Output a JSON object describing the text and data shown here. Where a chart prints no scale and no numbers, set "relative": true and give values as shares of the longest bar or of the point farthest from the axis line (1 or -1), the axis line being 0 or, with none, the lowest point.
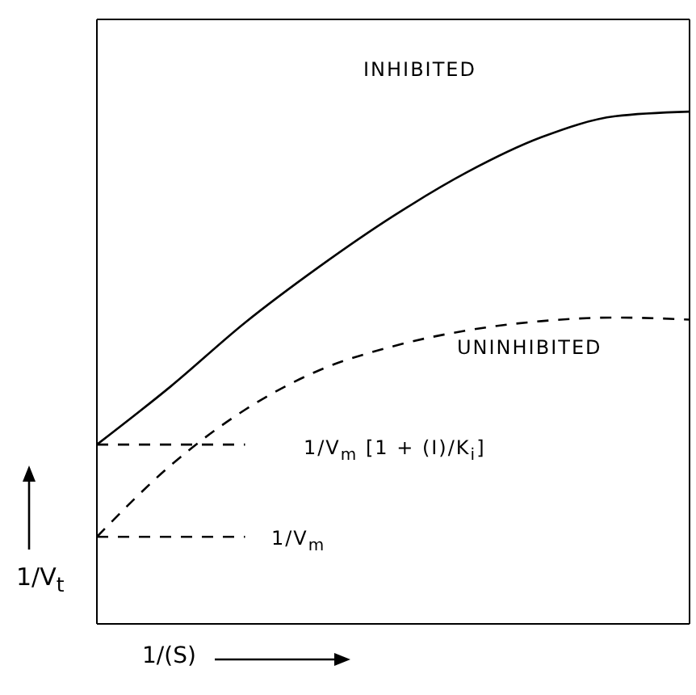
{
  "chart_data": {
    "type": "line",
    "relative": true,
    "xlabel": "1/(S)",
    "ylabel": "1/V$_{t}$",
    "categories": [
      null,
      null,
      null,
      null,
      null,
      null,
      null,
      null,
      null
    ],
    "series": [
      {
        "color": "#000000",
        "line_style": "solid",
        "values": [
          0.35,
          0.464,
          0.588,
          0.697,
          0.796,
          0.882,
          0.95,
          0.991,
          1.0
        ]
      },
      {
        "color": "#000000",
        "line_style": "dashed",
        "values": [
          0.17,
          0.31,
          0.418,
          0.495,
          0.542,
          0.573,
          0.591,
          0.598,
          0.594
        ]
      },
      {
        "color": "#000000",
        "line_style": "dashed",
        "values": [
          0.35,
          0.35,
          0.35,
          null,
          null,
          null,
          null,
          null,
          null
        ]
      },
      {
        "color": "#000000",
        "line_style": "dashed",
        "values": [
          0.17,
          0.17,
          0.17,
          null,
          null,
          null,
          null,
          null,
          null
        ]
      }
    ],
    "annotations": [
      "INHIBITED",
      "UNINHIBITED",
      "1/V$_{m}$ [1 + (I)/K$_{i}$]",
      "1/V$_{m}$"
    ]
  }
}
